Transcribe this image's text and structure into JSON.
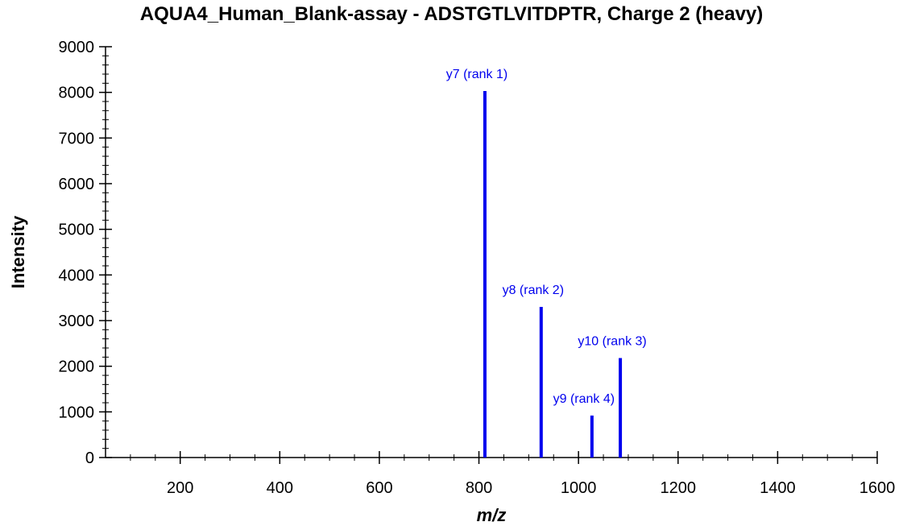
{
  "chart_data": {
    "type": "bar",
    "title": "AQUA4_Human_Blank-assay - ADSTGTLVITDPTR, Charge 2 (heavy)",
    "xlabel": "m/z",
    "ylabel": "Intensity",
    "xlim": [
      50,
      1600
    ],
    "ylim": [
      0,
      9000
    ],
    "x_ticks": [
      200,
      400,
      600,
      800,
      1000,
      1200,
      1400,
      1600
    ],
    "y_ticks": [
      0,
      1000,
      2000,
      3000,
      4000,
      5000,
      6000,
      7000,
      8000,
      9000
    ],
    "grid": false,
    "peak_color": "#0000ee",
    "label_color": "#0000ee",
    "peaks": [
      {
        "mz": 812,
        "intensity": 8030,
        "label": "y7 (rank 1)"
      },
      {
        "mz": 925,
        "intensity": 3300,
        "label": "y8 (rank 2)"
      },
      {
        "mz": 1084,
        "intensity": 2180,
        "label": "y10 (rank 3)"
      },
      {
        "mz": 1027,
        "intensity": 920,
        "label": "y9 (rank 4)"
      }
    ]
  }
}
